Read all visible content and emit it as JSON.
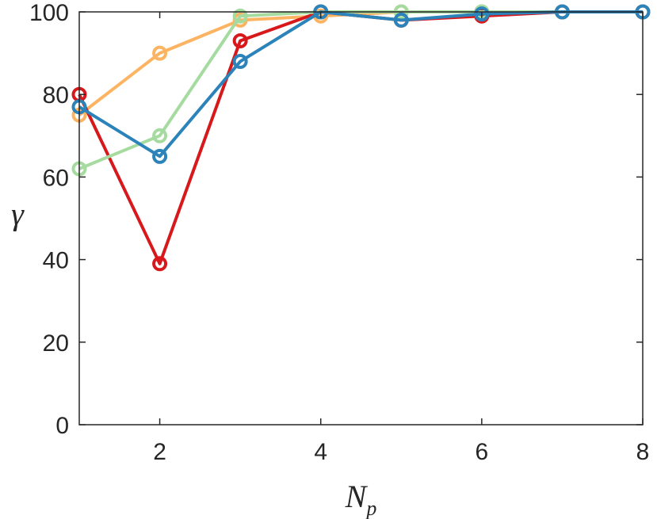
{
  "chart_data": {
    "type": "line",
    "title": "",
    "xlabel": "N",
    "xlabel_subscript": "p",
    "ylabel": "γ",
    "xlim": [
      1,
      8
    ],
    "ylim": [
      0,
      100
    ],
    "xticks": [
      2,
      4,
      6,
      8
    ],
    "yticks": [
      0,
      20,
      40,
      60,
      80,
      100
    ],
    "grid": false,
    "legend": "none",
    "marker": "circle",
    "x": [
      1,
      2,
      3,
      4,
      5,
      6,
      7,
      8
    ],
    "series": [
      {
        "color": "#fdb462",
        "values": [
          75,
          90,
          98,
          99,
          100,
          100,
          100,
          100
        ]
      },
      {
        "color": "#d7191c",
        "values": [
          80,
          39,
          93,
          100,
          98,
          99,
          100,
          100
        ]
      },
      {
        "color": "#a6dba0",
        "values": [
          62,
          70,
          99,
          100,
          100,
          100,
          100,
          100
        ]
      },
      {
        "color": "#2b83ba",
        "values": [
          77,
          65,
          88,
          100,
          98,
          99.5,
          100,
          100
        ]
      }
    ]
  }
}
